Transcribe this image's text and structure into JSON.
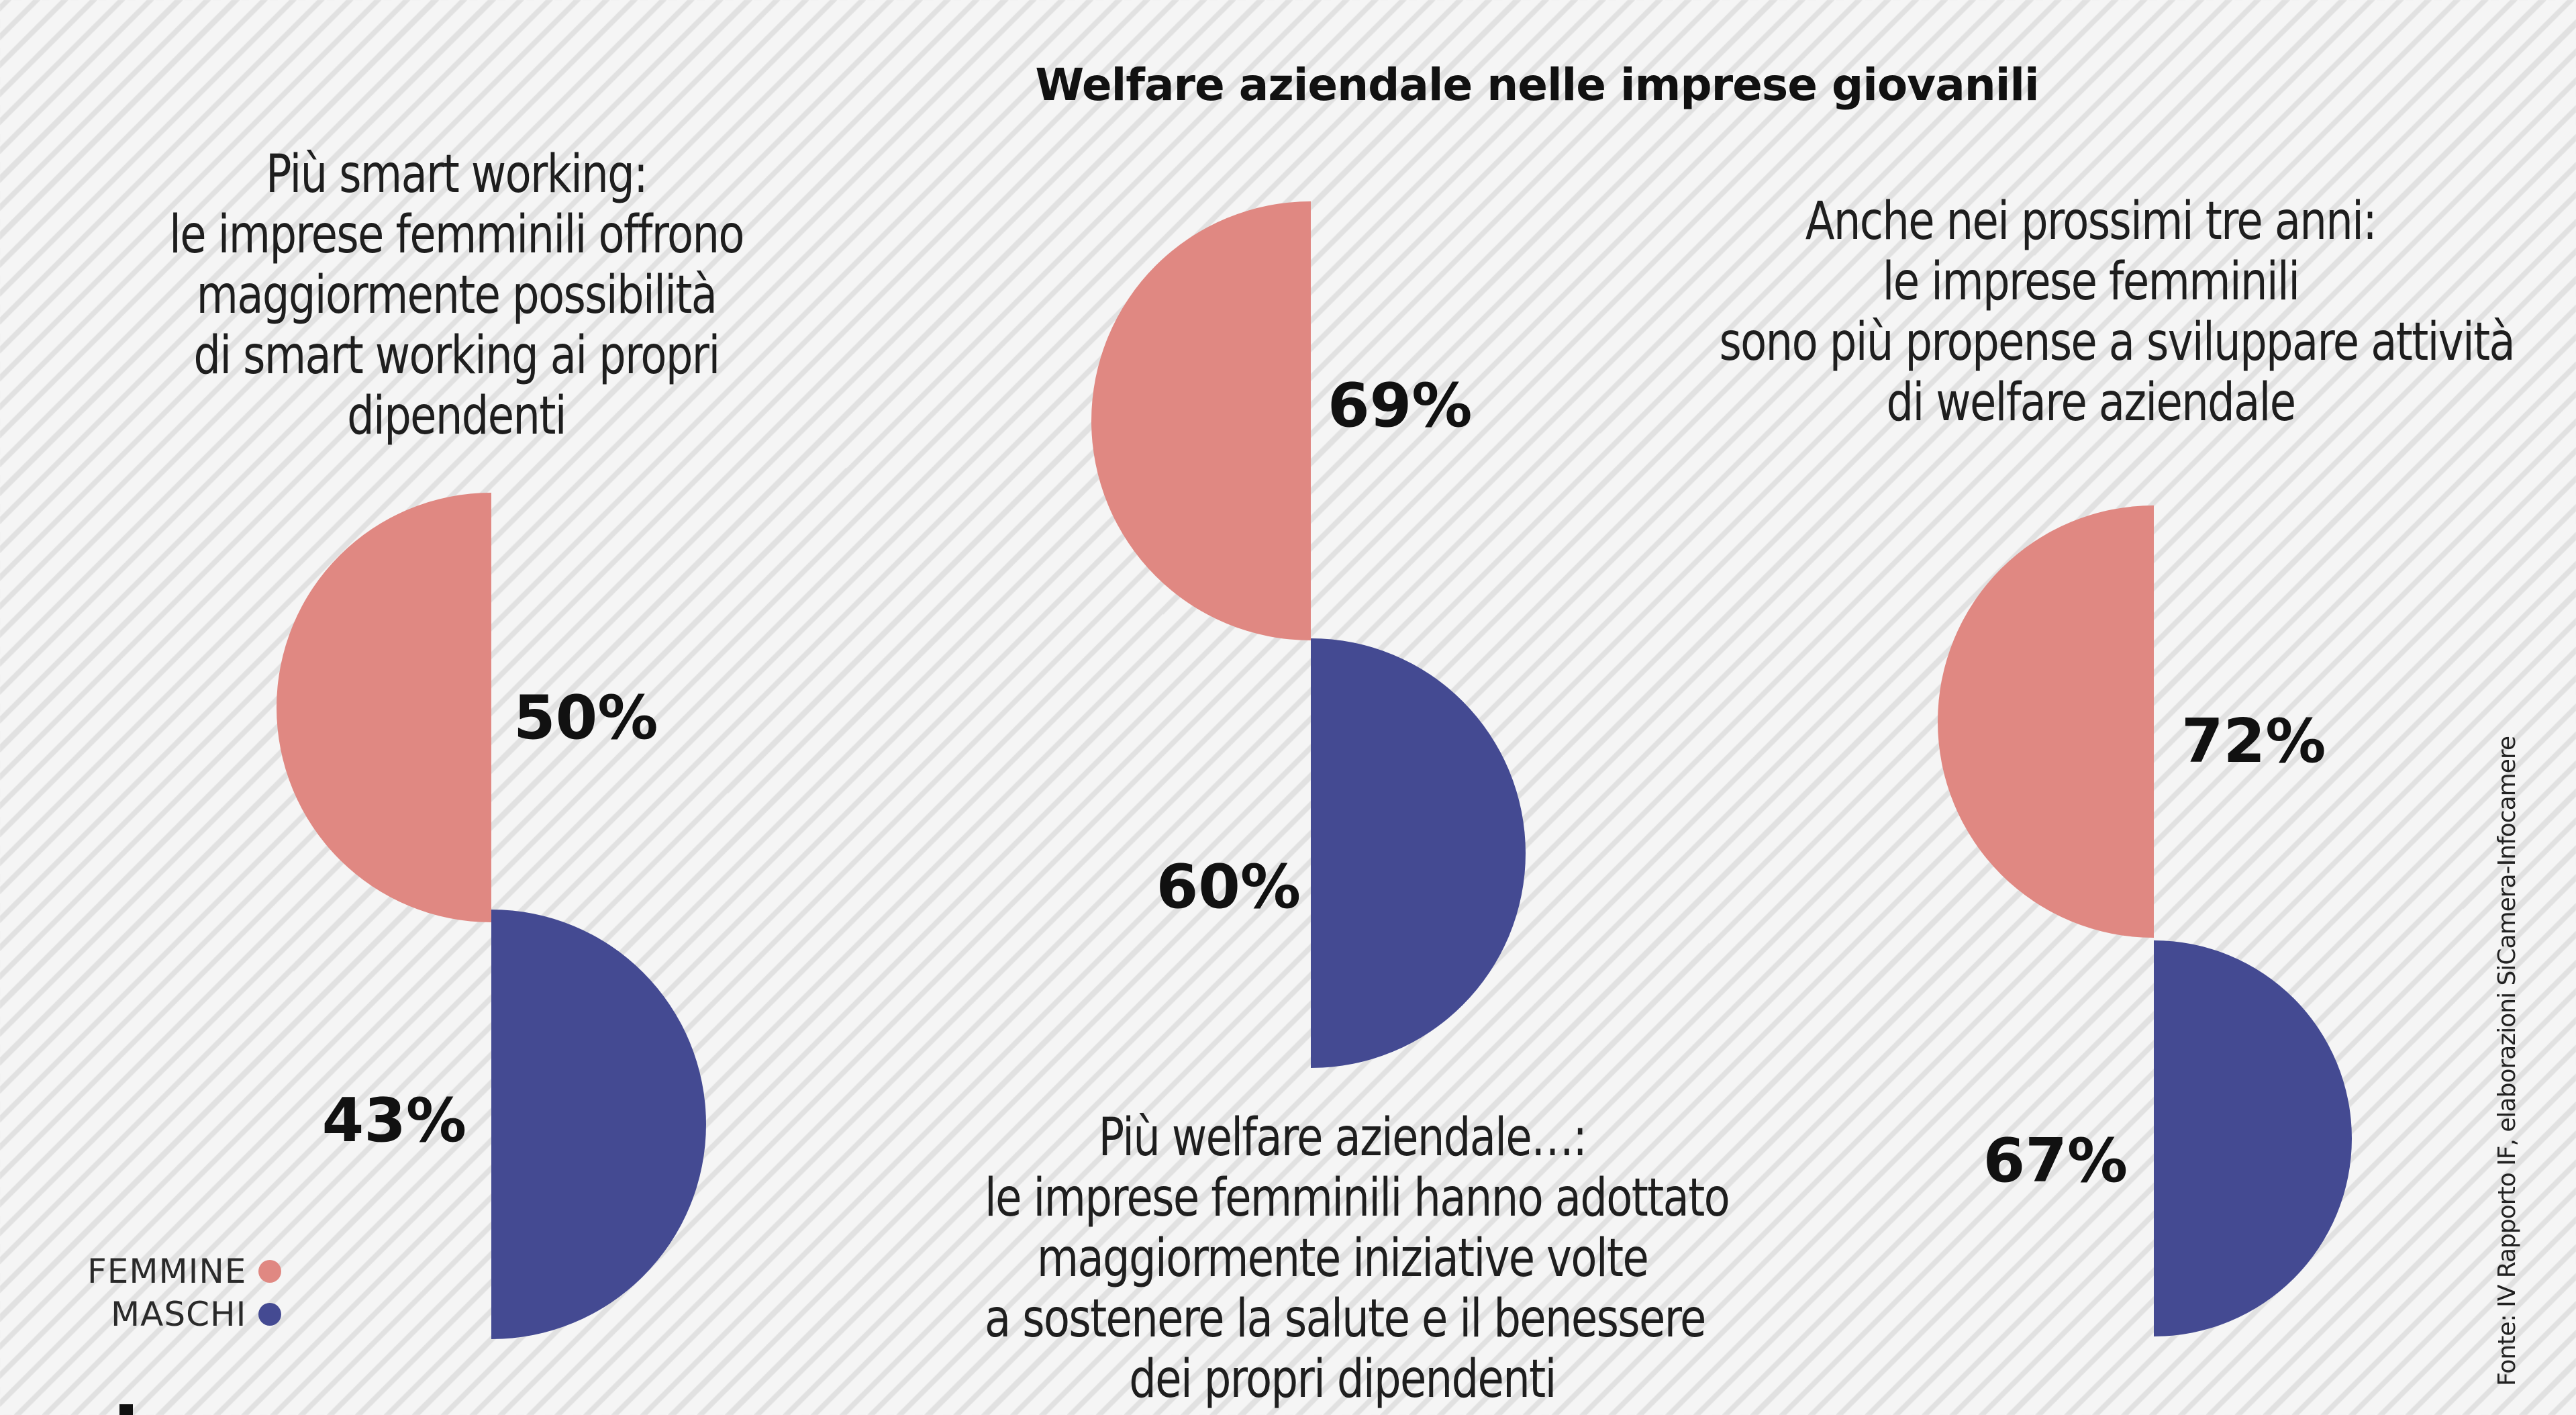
{
  "title": "Welfare aziendale nelle imprese giovanili",
  "captions": [
    [
      "Più smart working:",
      "le imprese femminili offrono",
      "maggiormente possibilità",
      "di smart working ai propri",
      "dipendenti"
    ],
    [
      "Più welfare aziendale…:",
      "le imprese femminili hanno adottato",
      "maggiormente iniziative volte",
      "a sostenere la salute e il benessere",
      "dei propri dipendenti"
    ],
    [
      "Anche nei prossimi tre anni:",
      "le imprese femminili",
      "sono più propense a sviluppare attività",
      "di welfare aziendale"
    ]
  ],
  "legend": {
    "femmine": "FEMMINE",
    "maschi": "MASCHI"
  },
  "colors": {
    "femmine": "#e08882",
    "maschi": "#444a92"
  },
  "source": "Fonte: IV Rapporto IF, elaborazioni SiCamera-Infocamere",
  "chart_data": [
    {
      "type": "semicircle",
      "topic": "smart working",
      "series": [
        {
          "name": "FEMMINE",
          "value": 50,
          "label": "50%"
        },
        {
          "name": "MASCHI",
          "value": 43,
          "label": "43%"
        }
      ]
    },
    {
      "type": "semicircle",
      "topic": "welfare aziendale",
      "series": [
        {
          "name": "FEMMINE",
          "value": 69,
          "label": "69%"
        },
        {
          "name": "MASCHI",
          "value": 60,
          "label": "60%"
        }
      ]
    },
    {
      "type": "semicircle",
      "topic": "prossimi tre anni",
      "series": [
        {
          "name": "FEMMINE",
          "value": 72,
          "label": "72%"
        },
        {
          "name": "MASCHI",
          "value": 67,
          "label": "67%"
        }
      ]
    }
  ]
}
